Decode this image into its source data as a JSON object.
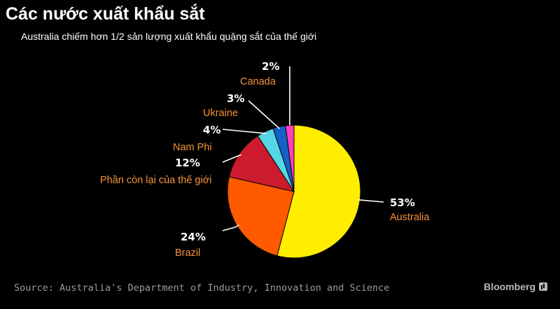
{
  "header": {
    "title": "Các nước xuất khẩu sắt",
    "subtitle": "Australia chiếm hơn 1/2 sản lượng xuất khẩu quặng sắt của thế giới"
  },
  "footer": {
    "source": "Source: Australia's Department of Industry, Innovation and Science",
    "brand": "Bloomberg"
  },
  "chart_data": {
    "type": "pie",
    "title": "Các nước xuất khẩu sắt",
    "subtitle": "Australia chiếm hơn 1/2 sản lượng xuất khẩu quặng sắt của thế giới",
    "unit": "%",
    "slices": [
      {
        "name": "Australia",
        "value": 53,
        "label": "53%",
        "color": "#ffee00"
      },
      {
        "name": "Brazil",
        "value": 24,
        "label": "24%",
        "color": "#ff5a00"
      },
      {
        "name": "Phần còn lại của thế giới",
        "value": 12,
        "label": "12%",
        "color": "#cc1a2e"
      },
      {
        "name": "Nam Phi",
        "value": 4,
        "label": "4%",
        "color": "#55d6e6"
      },
      {
        "name": "Ukraine",
        "value": 3,
        "label": "3%",
        "color": "#1560c8"
      },
      {
        "name": "Canada",
        "value": 2,
        "label": "2%",
        "color": "#ff3fb8"
      }
    ],
    "label_color": "#f5923a",
    "value_color": "#ffffff",
    "legend": "none",
    "grid": false
  }
}
